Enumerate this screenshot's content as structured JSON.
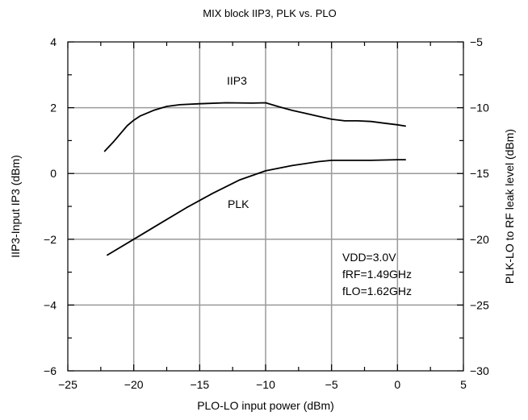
{
  "chart_data": {
    "type": "line",
    "title": "MIX block IIP3, PLK vs. PLO",
    "xlabel": "PLO-LO input power (dBm)",
    "ylabel_left": "IIP3-Input IP3 (dBm)",
    "ylabel_right": "PLK-LO to RF leak level (dBm)",
    "xlim": [
      -25,
      5
    ],
    "ylim_left": [
      -6,
      4
    ],
    "ylim_right": [
      -30,
      -5
    ],
    "x_ticks": [
      -25,
      -20,
      -15,
      -10,
      -5,
      0,
      5
    ],
    "x_tick_labels": [
      "−25",
      "−20",
      "−15",
      "−10",
      "−5",
      "0",
      "5"
    ],
    "y_left_ticks": [
      -6,
      -4,
      -2,
      0,
      2,
      4
    ],
    "y_left_tick_labels": [
      "−6",
      "−4",
      "−2",
      "0",
      "2",
      "4"
    ],
    "y_right_ticks": [
      -30,
      -25,
      -20,
      -15,
      -10,
      -5
    ],
    "y_right_tick_labels": [
      "−30",
      "−25",
      "−20",
      "−15",
      "−10",
      "−5"
    ],
    "grid": true,
    "series": [
      {
        "name": "IIP3",
        "axis": "left",
        "x": [
          -22.2,
          -21.5,
          -20.5,
          -20,
          -19.5,
          -18.5,
          -17.5,
          -16.5,
          -15,
          -13,
          -11,
          -10,
          -9,
          -8,
          -7,
          -6,
          -5,
          -4,
          -3,
          -2,
          -1,
          0,
          0.6
        ],
        "y": [
          0.68,
          0.98,
          1.45,
          1.62,
          1.75,
          1.92,
          2.04,
          2.09,
          2.12,
          2.15,
          2.14,
          2.15,
          2.03,
          1.92,
          1.83,
          1.74,
          1.65,
          1.6,
          1.6,
          1.58,
          1.53,
          1.48,
          1.44
        ]
      },
      {
        "name": "PLK",
        "axis": "right",
        "x": [
          -22,
          -20,
          -18,
          -16,
          -14,
          -12,
          -10,
          -8,
          -6,
          -5,
          -4,
          -2,
          0,
          0.6
        ],
        "y": [
          -21.2,
          -20.0,
          -18.8,
          -17.6,
          -16.5,
          -15.5,
          -14.8,
          -14.4,
          -14.1,
          -14.0,
          -14.0,
          -14.0,
          -13.95,
          -13.95
        ]
      }
    ],
    "annotations": {
      "iip3_label": "IIP3",
      "plk_label": "PLK",
      "conditions": [
        "VDD=3.0V",
        "fRF=1.49GHz",
        "fLO=1.62GHz"
      ]
    }
  }
}
